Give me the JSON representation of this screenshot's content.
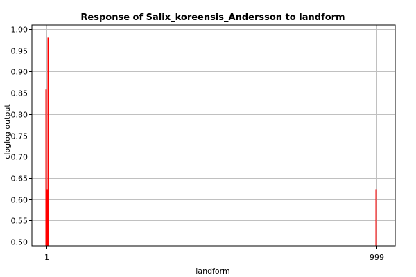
{
  "chart_data": {
    "type": "bar",
    "title": "Response of Salix_koreensis_Andersson to landform",
    "xlabel": "landform",
    "ylabel": "cloglog output",
    "x_ticks": [
      "1",
      "999"
    ],
    "y_ticks": [
      "0.50",
      "0.55",
      "0.60",
      "0.65",
      "0.70",
      "0.75",
      "0.80",
      "0.85",
      "0.90",
      "0.95",
      "1.00"
    ],
    "ylim": [
      0.49,
      1.01
    ],
    "grid": true,
    "series": [
      {
        "color": "#ff0000",
        "points": [
          {
            "x": "1",
            "y": 0.623
          },
          {
            "x": "1",
            "y": 0.858
          },
          {
            "x": "1",
            "y": 0.623
          },
          {
            "x": "1",
            "y": 0.98
          },
          {
            "x": "999",
            "y": 0.623
          }
        ]
      }
    ]
  }
}
